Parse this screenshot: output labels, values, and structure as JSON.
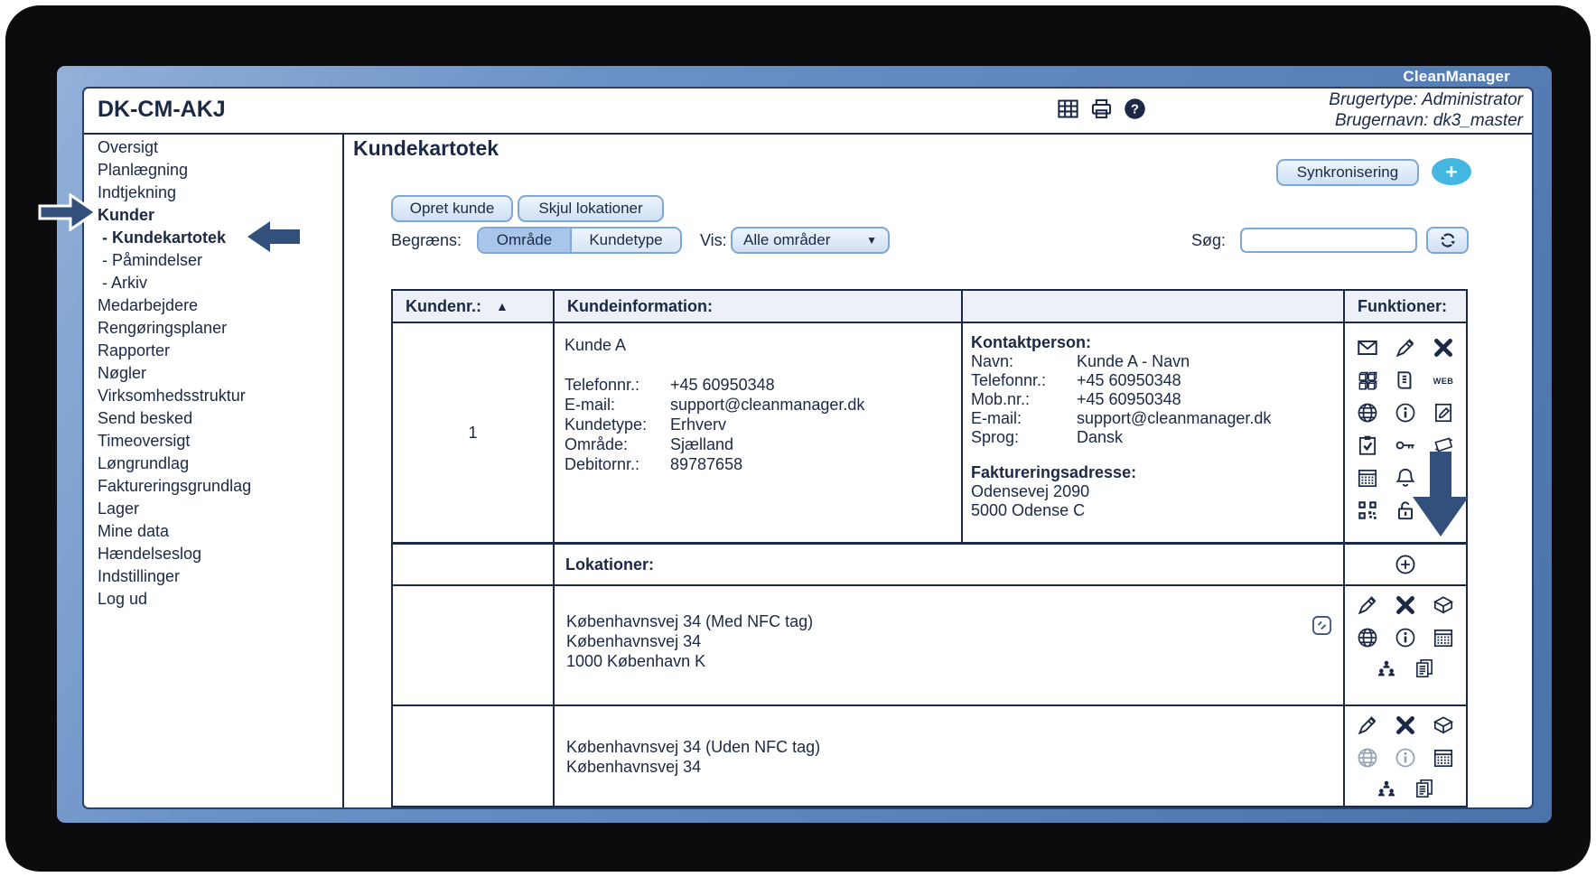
{
  "brand": "CleanManager",
  "window": {
    "title": "DK-CM-AKJ",
    "user_type": "Brugertype: Administrator",
    "user_name": "Brugernavn: dk3_master",
    "toolbar_icons": [
      "table",
      "printer",
      "help"
    ]
  },
  "sidebar": {
    "items": [
      {
        "label": "Oversigt"
      },
      {
        "label": "Planlægning"
      },
      {
        "label": "Indtjekning"
      },
      {
        "label": "Kunder",
        "bold": true
      },
      {
        "label": "- Kundekartotek",
        "bold": true,
        "indent": true
      },
      {
        "label": "- Påmindelser",
        "indent": true
      },
      {
        "label": "- Arkiv",
        "indent": true
      },
      {
        "label": "Medarbejdere"
      },
      {
        "label": "Rengøringsplaner"
      },
      {
        "label": "Rapporter"
      },
      {
        "label": "Nøgler"
      },
      {
        "label": "Virksomhedsstruktur"
      },
      {
        "label": "Send besked"
      },
      {
        "label": "Timeoversigt"
      },
      {
        "label": "Løngrundlag"
      },
      {
        "label": "Faktureringsgrundlag"
      },
      {
        "label": "Lager"
      },
      {
        "label": "Mine data"
      },
      {
        "label": "Hændelseslog"
      },
      {
        "label": "Indstillinger"
      },
      {
        "label": "Log ud"
      }
    ]
  },
  "main": {
    "page_title": "Kundekartotek",
    "sync_button": "Synkronisering",
    "add_button": "+",
    "create_button": "Opret kunde",
    "hide_locations_button": "Skjul lokationer",
    "filter": {
      "limit_label": "Begræns:",
      "segments": [
        "Område",
        "Kundetype"
      ],
      "selected_segment": "Område",
      "show_label": "Vis:",
      "show_value": "Alle områder",
      "caret_icon": "▼",
      "search_label": "Søg:",
      "search_value": ""
    },
    "table": {
      "col_number": "Kundenr.:",
      "sort_icon": "▲",
      "col_info": "Kundeinformation:",
      "col_functions": "Funktioner:",
      "customer": {
        "number": "1",
        "name": "Kunde A",
        "info_rows": [
          {
            "label": "Telefonnr.:",
            "value": "+45 60950348"
          },
          {
            "label": "E-mail:",
            "value": "support@cleanmanager.dk"
          },
          {
            "label": "Kundetype:",
            "value": "Erhverv"
          },
          {
            "label": "Område:",
            "value": "Sjælland"
          },
          {
            "label": "Debitornr.:",
            "value": "89787658"
          }
        ],
        "contact_title": "Kontaktperson:",
        "contact_rows": [
          {
            "label": "Navn:",
            "value": "Kunde A - Navn"
          },
          {
            "label": "Telefonnr.:",
            "value": "+45 60950348"
          },
          {
            "label": "Mob.nr.:",
            "value": "+45 60950348"
          },
          {
            "label": "E-mail:",
            "value": "support@cleanmanager.dk"
          },
          {
            "label": "Sprog:",
            "value": "Dansk"
          }
        ],
        "billing_title": "Faktureringsadresse:",
        "billing_lines": [
          "Odensevej 2090",
          "5000 Odense C"
        ],
        "function_icons": [
          "envelope",
          "marker",
          "delete",
          "cubes",
          "book",
          "web",
          "globe",
          "info",
          "note",
          "clipboard",
          "key",
          "cloth",
          "calendar",
          "bell",
          "",
          "qr",
          "lock",
          "docs"
        ]
      },
      "locations_header": "Lokationer:",
      "locations_add_icon": "add",
      "locations": [
        {
          "lines": [
            "Københavnsvej 34 (Med NFC tag)",
            "Københavnsvej 34",
            "1000 København K"
          ],
          "nfc_icon": true,
          "function_icons": [
            "marker",
            "delete",
            "box",
            "globe",
            "info",
            "calendar",
            "people",
            "docs"
          ],
          "disabled_icons": []
        },
        {
          "lines": [
            "Københavnsvej 34 (Uden NFC tag)",
            "Københavnsvej 34"
          ],
          "nfc_icon": false,
          "function_icons": [
            "marker",
            "delete",
            "box",
            "globe",
            "info",
            "calendar",
            "people",
            "docs"
          ],
          "disabled_icons": [
            "globe",
            "info"
          ]
        }
      ]
    }
  },
  "colors": {
    "text_navy": "#1b2946",
    "frame_blue": "#5f88bf",
    "add_button_cyan": "#43b7e2",
    "selected_segment": "#a9c6ea",
    "arrow_fill": "#33507c"
  }
}
